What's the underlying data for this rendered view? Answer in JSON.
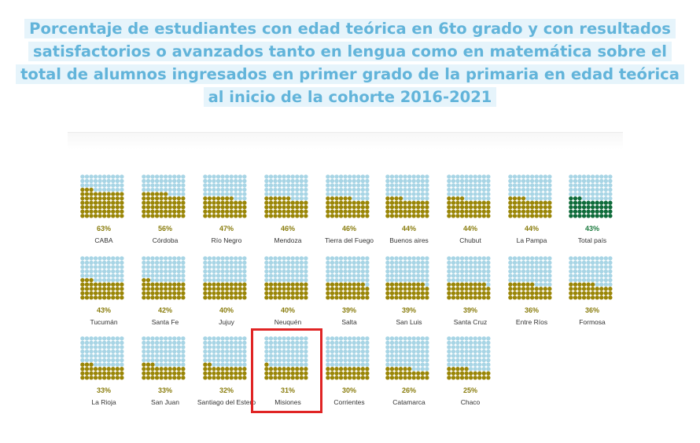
{
  "title": "Porcentaje de estudiantes con edad teórica en 6to grado y con resultados satisfactorios o avanzados tanto en lengua como en matemática sobre el total de alumnos ingresados en primer grado de la primaria en edad teórica al inicio de la cohorte 2016-2021",
  "colors": {
    "empty": "#a8d5e5",
    "filled": "#9a8607",
    "total_filled": "#0e6b3a",
    "highlight": "#e02424",
    "title": "#62b4da"
  },
  "chart_data": {
    "type": "waffle",
    "units_per_chart": 100,
    "grid": "10x10",
    "highlighted": "Misiones",
    "categories": [
      "CABA",
      "Córdoba",
      "Río Negro",
      "Mendoza",
      "Tierra del Fuego",
      "Buenos aires",
      "Chubut",
      "La Pampa",
      "Total país",
      "Tucumán",
      "Santa Fe",
      "Jujuy",
      "Neuquén",
      "Salta",
      "San Luis",
      "Santa Cruz",
      "Entre Ríos",
      "Formosa",
      "La Rioja",
      "San Juan",
      "Santiago del Estero",
      "Misiones",
      "Corrientes",
      "Catamarca",
      "Chaco"
    ],
    "values": [
      63,
      56,
      47,
      46,
      46,
      44,
      44,
      44,
      43,
      43,
      42,
      40,
      40,
      39,
      39,
      39,
      36,
      36,
      33,
      33,
      32,
      31,
      30,
      26,
      25
    ],
    "labels": [
      "63%",
      "56%",
      "47%",
      "46%",
      "46%",
      "44%",
      "44%",
      "44%",
      "43%",
      "43%",
      "42%",
      "40%",
      "40%",
      "39%",
      "39%",
      "39%",
      "36%",
      "36%",
      "33%",
      "33%",
      "32%",
      "31%",
      "30%",
      "26%",
      "25%"
    ]
  }
}
